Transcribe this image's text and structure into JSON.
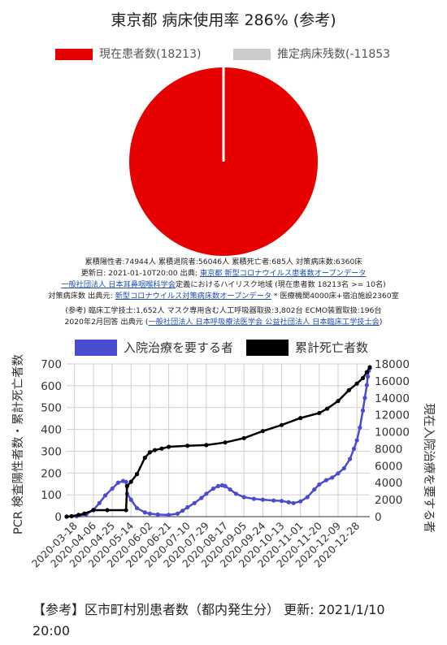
{
  "pie": {
    "title": "東京都 病床使用率 286% (参考)",
    "legend": [
      {
        "label": "現在患者数(18213)",
        "color": "#e60000"
      },
      {
        "label": "推定病床残数(-11853",
        "color": "#cccccc"
      }
    ]
  },
  "info": {
    "line1": "累積陽性者:74944人 累積退院者:56046人 累積死亡者:685人 対策病床数:6360床",
    "line2_a": "更新日: 2021-01-10T20:00 出典: ",
    "line2_b": "東京都 新型コロナウイルス患者数オープンデータ",
    "line3_a": "一般社団法人 日本耳鼻咽喉科学会",
    "line3_b": "定義におけるハイリスク地域 (現在患者数 18213名 >= 10名)",
    "line4_a": "対策病床数 出典元: ",
    "line4_b": "新型コロナウイルス対策病床数オープンデータ",
    "line4_c": " * 医療機関4000床+宿泊施設2360室",
    "line5": "(参考) 臨床工学技士:1,652人 マスク専用含む人工呼吸器取扱:3,802台 ECMO装置取扱:196台",
    "line6_a": "2020年2月回答 出典元 (",
    "line6_b": "一般社団法人 日本呼吸療法医学会 公益社団法人 日本臨床工学技士会",
    "line6_c": ")"
  },
  "chart_data": [
    {
      "type": "pie",
      "title": "東京都 病床使用率 286% (参考)",
      "slices": [
        {
          "label": "現在患者数(18213)",
          "value": 18213,
          "color": "#e60000"
        },
        {
          "label": "推定病床残数(-11853",
          "value": 0,
          "color": "#cccccc"
        }
      ]
    },
    {
      "type": "line",
      "title": "",
      "legend_position": "top",
      "grid": true,
      "y_left_label": "PCR 検査陽性者数・累計死亡者数",
      "y_right_label": "現在入院治療を要する者",
      "y_left_range": [
        0,
        700
      ],
      "y_left_ticks": [
        0,
        100,
        200,
        300,
        400,
        500,
        600,
        700
      ],
      "y_right_range": [
        0,
        18000
      ],
      "y_right_ticks": [
        0,
        2000,
        4000,
        6000,
        8000,
        10000,
        12000,
        14000,
        16000,
        18000
      ],
      "x_range": [
        "2020-03-10",
        "2021-01-10"
      ],
      "x_ticks": [
        "2020-03-18",
        "2020-04-06",
        "2020-04-25",
        "2020-05-14",
        "2020-06-02",
        "2020-06-21",
        "2020-07-10",
        "2020-07-29",
        "2020-08-17",
        "2020-09-05",
        "2020-09-24",
        "2020-10-13",
        "2020-11-01",
        "2020-11-20",
        "2020-12-09",
        "2020-12-28"
      ],
      "series": [
        {
          "name": "入院治療を要する者",
          "color": "#4b4bd0",
          "axis": "right",
          "points": [
            [
              "2020-03-10",
              0
            ],
            [
              "2020-03-20",
              50
            ],
            [
              "2020-03-30",
              300
            ],
            [
              "2020-04-06",
              800
            ],
            [
              "2020-04-12",
              1600
            ],
            [
              "2020-04-18",
              2500
            ],
            [
              "2020-04-25",
              3300
            ],
            [
              "2020-05-01",
              4000
            ],
            [
              "2020-05-06",
              4200
            ],
            [
              "2020-05-09",
              4100
            ],
            [
              "2020-05-10",
              2700
            ],
            [
              "2020-05-14",
              2000
            ],
            [
              "2020-05-20",
              1000
            ],
            [
              "2020-05-28",
              500
            ],
            [
              "2020-06-02",
              350
            ],
            [
              "2020-06-10",
              250
            ],
            [
              "2020-06-21",
              200
            ],
            [
              "2020-06-30",
              350
            ],
            [
              "2020-07-05",
              700
            ],
            [
              "2020-07-10",
              1100
            ],
            [
              "2020-07-17",
              1600
            ],
            [
              "2020-07-24",
              2200
            ],
            [
              "2020-07-29",
              2700
            ],
            [
              "2020-08-05",
              3300
            ],
            [
              "2020-08-10",
              3600
            ],
            [
              "2020-08-14",
              3700
            ],
            [
              "2020-08-17",
              3600
            ],
            [
              "2020-08-22",
              3200
            ],
            [
              "2020-08-28",
              2700
            ],
            [
              "2020-09-05",
              2300
            ],
            [
              "2020-09-15",
              2100
            ],
            [
              "2020-09-24",
              2000
            ],
            [
              "2020-10-05",
              1900
            ],
            [
              "2020-10-13",
              1850
            ],
            [
              "2020-10-20",
              1700
            ],
            [
              "2020-10-25",
              1600
            ],
            [
              "2020-11-01",
              1800
            ],
            [
              "2020-11-08",
              2300
            ],
            [
              "2020-11-15",
              3200
            ],
            [
              "2020-11-20",
              3800
            ],
            [
              "2020-11-27",
              4300
            ],
            [
              "2020-12-03",
              4600
            ],
            [
              "2020-12-09",
              5100
            ],
            [
              "2020-12-15",
              5700
            ],
            [
              "2020-12-21",
              6800
            ],
            [
              "2020-12-25",
              8000
            ],
            [
              "2020-12-28",
              9000
            ],
            [
              "2020-12-31",
              10500
            ],
            [
              "2021-01-03",
              12500
            ],
            [
              "2021-01-05",
              14000
            ],
            [
              "2021-01-07",
              15500
            ],
            [
              "2021-01-08",
              16500
            ],
            [
              "2021-01-09",
              17200
            ],
            [
              "2021-01-10",
              17500
            ]
          ]
        },
        {
          "name": "累計死亡者数",
          "color": "#000000",
          "axis": "left",
          "points": [
            [
              "2020-03-10",
              0
            ],
            [
              "2020-03-15",
              2
            ],
            [
              "2020-03-22",
              8
            ],
            [
              "2020-03-28",
              14
            ],
            [
              "2020-04-06",
              30
            ],
            [
              "2020-04-20",
              30
            ],
            [
              "2020-05-09",
              30
            ],
            [
              "2020-05-10",
              140
            ],
            [
              "2020-05-14",
              160
            ],
            [
              "2020-05-20",
              195
            ],
            [
              "2020-05-28",
              270
            ],
            [
              "2020-06-02",
              295
            ],
            [
              "2020-06-07",
              305
            ],
            [
              "2020-06-14",
              312
            ],
            [
              "2020-06-21",
              320
            ],
            [
              "2020-07-10",
              325
            ],
            [
              "2020-07-29",
              328
            ],
            [
              "2020-08-17",
              340
            ],
            [
              "2020-09-05",
              360
            ],
            [
              "2020-09-24",
              392
            ],
            [
              "2020-10-13",
              420
            ],
            [
              "2020-11-01",
              452
            ],
            [
              "2020-11-20",
              475
            ],
            [
              "2020-11-28",
              495
            ],
            [
              "2020-12-09",
              530
            ],
            [
              "2020-12-20",
              580
            ],
            [
              "2020-12-28",
              610
            ],
            [
              "2021-01-03",
              635
            ],
            [
              "2021-01-07",
              662
            ],
            [
              "2021-01-10",
              685
            ]
          ]
        }
      ]
    }
  ],
  "footer": {
    "line1": "【参考】区市町村別患者数（都内発生分） 更新: 2021/1/10",
    "line2": "20:00"
  }
}
